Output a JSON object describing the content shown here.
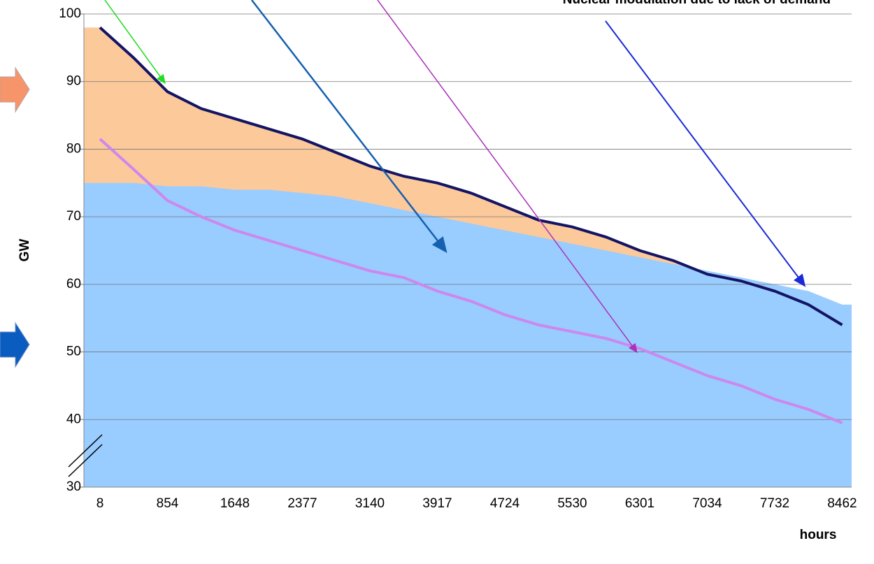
{
  "chart_data": {
    "type": "area",
    "annotations": [
      "Nuclear modulation due to lack of demand"
    ],
    "ylabel": "GW",
    "xlabel": "hours",
    "categories": [
      "8",
      null,
      "854",
      null,
      "1648",
      null,
      "2377",
      null,
      "3140",
      null,
      "3917",
      null,
      "4724",
      null,
      "5530",
      null,
      "6301",
      null,
      "7034",
      null,
      "7732",
      null,
      "8462"
    ],
    "series": [
      {
        "color": "#fcc99b",
        "line_color": "#141464",
        "values": [
          98,
          93.5,
          88.5,
          86,
          84.5,
          83,
          81.5,
          79.5,
          77.5,
          76,
          75,
          73.5,
          71.5,
          69.5,
          68.5,
          67,
          65,
          63.5,
          61.5,
          60.5,
          59,
          57,
          54
        ]
      },
      {
        "color": "#99ccff",
        "values": [
          75,
          75,
          74.5,
          74.5,
          74,
          74,
          73.5,
          73,
          72,
          71,
          70,
          69,
          68,
          67,
          66,
          65,
          64,
          63,
          62,
          61,
          60,
          59,
          57
        ]
      },
      {
        "color": "#cc88ee",
        "values": [
          81.5,
          77,
          72.4,
          70,
          68,
          66.5,
          65,
          63.5,
          62,
          61,
          59,
          57.5,
          55.5,
          54,
          53,
          52,
          50.5,
          48.5,
          46.5,
          45,
          43,
          41.5,
          39.5
        ]
      }
    ],
    "ylim": [
      30,
      100
    ],
    "yticks": [
      30,
      40,
      50,
      60,
      70,
      80,
      90,
      100
    ],
    "grid": true
  }
}
